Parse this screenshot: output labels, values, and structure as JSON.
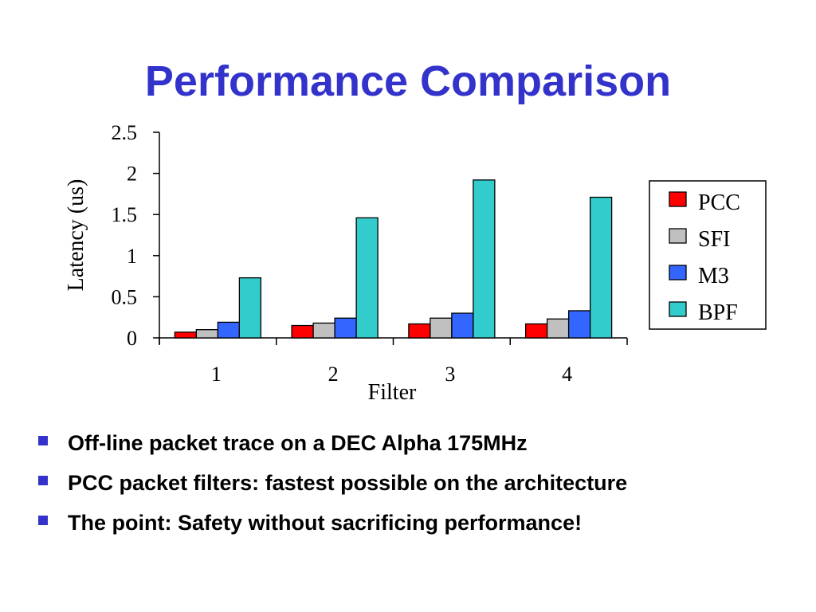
{
  "slide": {
    "title": "Performance Comparison",
    "bullets": [
      "Off-line packet trace on a DEC Alpha 175MHz",
      "PCC packet filters: fastest possible on the architecture",
      "The point: Safety without sacrificing performance!"
    ],
    "bullet_marker_icon": "square-bullet-icon",
    "accent_color": "#3333cc"
  },
  "chart_data": {
    "type": "bar",
    "title": "",
    "xlabel": "Filter",
    "ylabel": "Latency (us)",
    "categories": [
      "1",
      "2",
      "3",
      "4"
    ],
    "ylim": [
      0,
      2.5
    ],
    "yticks": [
      "0",
      "0.5",
      "1",
      "1.5",
      "2",
      "2.5"
    ],
    "grid": false,
    "legend_position": "right",
    "series": [
      {
        "name": "PCC",
        "color": "#ff0000",
        "values": [
          0.07,
          0.15,
          0.17,
          0.17
        ]
      },
      {
        "name": "SFI",
        "color": "#c0c0c0",
        "values": [
          0.1,
          0.18,
          0.24,
          0.23
        ]
      },
      {
        "name": "M3",
        "color": "#3366ff",
        "values": [
          0.19,
          0.24,
          0.3,
          0.33
        ]
      },
      {
        "name": "BPF",
        "color": "#33cccc",
        "values": [
          0.73,
          1.46,
          1.92,
          1.71
        ]
      }
    ]
  }
}
